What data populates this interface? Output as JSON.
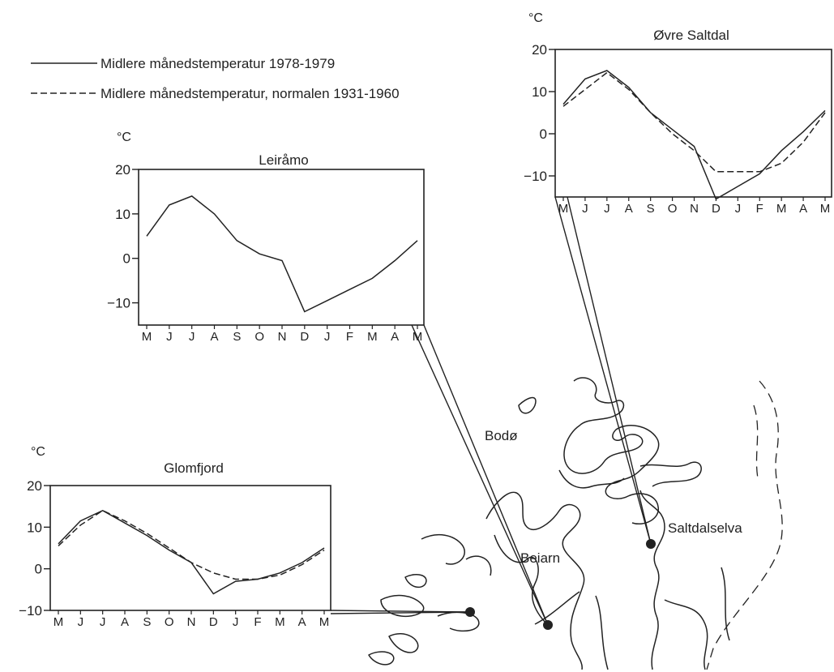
{
  "legend": {
    "observed": "Midlere månedstemperatur 1978-1979",
    "normal": "Midlere månedstemperatur, normalen 1931-1960"
  },
  "map_labels": {
    "bodo": "Bodø",
    "beiarn": "Beiarn",
    "saltdalselva": "Saltdalselva"
  },
  "chart_data": [
    {
      "type": "line",
      "title": "Leiråmo",
      "ylabel": "°C",
      "ylim": [
        -15,
        20
      ],
      "yticks": [
        20,
        10,
        0,
        -10
      ],
      "ytick_labels": [
        "20",
        "10",
        "0",
        "−10"
      ],
      "categories": [
        "M",
        "J",
        "J",
        "A",
        "S",
        "O",
        "N",
        "D",
        "J",
        "F",
        "M",
        "A",
        "M"
      ],
      "series": [
        {
          "name": "Midlere månedstemperatur 1978-1979",
          "style": "solid",
          "values": [
            5,
            12,
            14,
            10,
            4,
            1,
            -0.5,
            -12,
            -9.5,
            -7,
            -4.5,
            -0.5,
            4
          ]
        }
      ]
    },
    {
      "type": "line",
      "title": "Øvre Saltdal",
      "ylabel": "°C",
      "ylim": [
        -15,
        20
      ],
      "yticks": [
        20,
        10,
        0,
        -10
      ],
      "ytick_labels": [
        "20",
        "10",
        "0",
        "−10"
      ],
      "categories": [
        "M",
        "J",
        "J",
        "A",
        "S",
        "O",
        "N",
        "D",
        "J",
        "F",
        "M",
        "A",
        "M"
      ],
      "series": [
        {
          "name": "Midlere månedstemperatur 1978-1979",
          "style": "solid",
          "values": [
            7,
            13,
            15,
            11,
            5,
            1,
            -3,
            -15.5,
            -12.5,
            -9.5,
            -4,
            0.5,
            5.5
          ]
        },
        {
          "name": "Midlere månedstemperatur, normalen 1931-1960",
          "style": "dashed",
          "values": [
            6.5,
            10.5,
            14.5,
            10.5,
            5,
            0,
            -4,
            -9,
            -9,
            -9,
            -7,
            -2,
            5
          ]
        }
      ]
    },
    {
      "type": "line",
      "title": "Glomfjord",
      "ylabel": "°C",
      "ylim": [
        -10,
        20
      ],
      "yticks": [
        20,
        10,
        0,
        -10
      ],
      "ytick_labels": [
        "20",
        "10",
        "0",
        "−10"
      ],
      "categories": [
        "M",
        "J",
        "J",
        "A",
        "S",
        "O",
        "N",
        "D",
        "J",
        "F",
        "M",
        "A",
        "M"
      ],
      "series": [
        {
          "name": "Midlere månedstemperatur 1978-1979",
          "style": "solid",
          "values": [
            6,
            11.5,
            14,
            11,
            8,
            4.5,
            1.5,
            -6,
            -3,
            -2.5,
            -1,
            1.5,
            5
          ]
        },
        {
          "name": "Midlere månedstemperatur, normalen 1931-1960",
          "style": "dashed",
          "values": [
            5.5,
            10.5,
            14,
            11.5,
            8.5,
            5,
            1.5,
            -1,
            -2.5,
            -2.5,
            -1.5,
            1,
            4.5
          ]
        }
      ]
    }
  ]
}
